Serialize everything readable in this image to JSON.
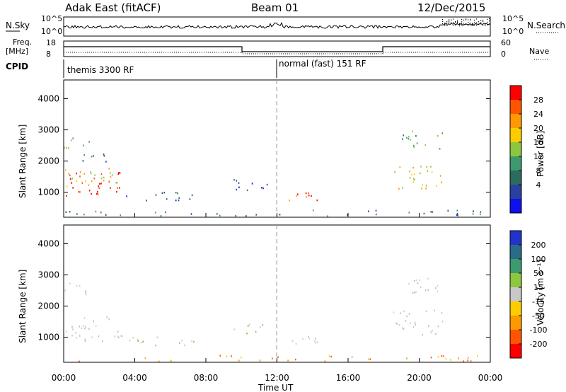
{
  "header": {
    "station": "Adak East (fitACF)",
    "beam": "Beam 01",
    "date": "12/Dec/2015"
  },
  "labels": {
    "nsky": "N.Sky",
    "nsearch": "N.Search",
    "freq_line1": "Freq.",
    "freq_line2": "[MHz]",
    "nave": "Nave",
    "cpid": "CPID",
    "slant_range": "Slant Range [km]",
    "time_axis": "Time UT",
    "power_unit": "Power [dB]",
    "velocity_unit": "Velocity [m s⁻¹]"
  },
  "noise_panel": {
    "left_ticks": [
      "10^5",
      "10^0"
    ],
    "right_ticks": [
      "10^5",
      "10^0"
    ]
  },
  "freq_panel": {
    "left_ticks": [
      "18",
      "8"
    ],
    "right_ticks": [
      "60",
      "0"
    ]
  },
  "cpid_segments": [
    {
      "label": "themis 3300 RF",
      "start_hour": 0
    },
    {
      "label": "normal (fast) 151 RF",
      "start_hour": 12
    }
  ],
  "chart_data": [
    {
      "type": "heatmap",
      "name": "power",
      "x_range_hours": [
        0,
        24
      ],
      "y_range_km": [
        200,
        4600
      ],
      "yticks": [
        1000,
        2000,
        3000,
        4000
      ],
      "xticks": [
        0,
        4,
        8,
        12,
        16,
        20,
        24
      ],
      "xtick_labels": [
        "00:00",
        "04:00",
        "08:00",
        "12:00",
        "16:00",
        "20:00",
        "00:00"
      ],
      "colorbar": {
        "ticks": [
          "28",
          "24",
          "20",
          "16",
          "12",
          "8",
          "4"
        ],
        "colors": [
          "#ff0000",
          "#ff5500",
          "#ff9900",
          "#ffcc00",
          "#8dc63f",
          "#3d9970",
          "#2c6b5f",
          "#2840a0",
          "#1010ee"
        ]
      },
      "regions": [
        {
          "t0": 0.0,
          "t1": 3.3,
          "r0": 900,
          "r1": 1700,
          "level": 8
        },
        {
          "t0": 0.0,
          "t1": 3.3,
          "r0": 1200,
          "r1": 1800,
          "level": 5
        },
        {
          "t0": 0.0,
          "t1": 1.5,
          "r0": 2400,
          "r1": 2800,
          "level": 3
        },
        {
          "t0": 0.5,
          "t1": 2.5,
          "r0": 2000,
          "r1": 2300,
          "level": 2
        },
        {
          "t0": 3.5,
          "t1": 7.5,
          "r0": 750,
          "r1": 1050,
          "level": 1
        },
        {
          "t0": 9.5,
          "t1": 11.5,
          "r0": 1000,
          "r1": 1450,
          "level": 1
        },
        {
          "t0": 12.5,
          "t1": 15.2,
          "r0": 750,
          "r1": 1050,
          "level": 7
        },
        {
          "t0": 18.5,
          "t1": 21.3,
          "r0": 1100,
          "r1": 1900,
          "level": 5
        },
        {
          "t0": 19.0,
          "t1": 21.3,
          "r0": 2400,
          "r1": 3000,
          "level": 3
        },
        {
          "t0": 0.0,
          "t1": 24.0,
          "r0": 250,
          "r1": 450,
          "level": 2
        }
      ]
    },
    {
      "type": "heatmap",
      "name": "velocity",
      "x_range_hours": [
        0,
        24
      ],
      "y_range_km": [
        200,
        4600
      ],
      "yticks": [
        1000,
        2000,
        3000,
        4000
      ],
      "xticks": [
        0,
        4,
        8,
        12,
        16,
        20,
        24
      ],
      "xtick_labels": [
        "00:00",
        "04:00",
        "08:00",
        "12:00",
        "16:00",
        "20:00",
        "00:00"
      ],
      "colorbar": {
        "ticks": [
          "200",
          "100",
          "50",
          "15",
          "-15",
          "-50",
          "-100",
          "-200"
        ],
        "colors": [
          "#2233cc",
          "#2a6b8a",
          "#3d9970",
          "#8dc63f",
          "#c8c8c8",
          "#ffcc00",
          "#ff9900",
          "#ff5500",
          "#ff0000"
        ]
      },
      "regions": [
        {
          "t0": 0.0,
          "t1": 3.3,
          "r0": 900,
          "r1": 1700,
          "level": "gray"
        },
        {
          "t0": 0.0,
          "t1": 1.5,
          "r0": 2400,
          "r1": 2800,
          "level": "gray"
        },
        {
          "t0": 3.5,
          "t1": 7.5,
          "r0": 750,
          "r1": 1050,
          "level": "green"
        },
        {
          "t0": 9.5,
          "t1": 11.5,
          "r0": 1150,
          "r1": 1450,
          "level": "green"
        },
        {
          "t0": 12.5,
          "t1": 15.2,
          "r0": 750,
          "r1": 1050,
          "level": "gray"
        },
        {
          "t0": 18.5,
          "t1": 21.3,
          "r0": 1100,
          "r1": 1900,
          "level": "gray"
        },
        {
          "t0": 19.0,
          "t1": 21.3,
          "r0": 2400,
          "r1": 3000,
          "level": "gray"
        },
        {
          "t0": 0.0,
          "t1": 24.0,
          "r0": 250,
          "r1": 450,
          "level": "orange"
        }
      ]
    }
  ]
}
